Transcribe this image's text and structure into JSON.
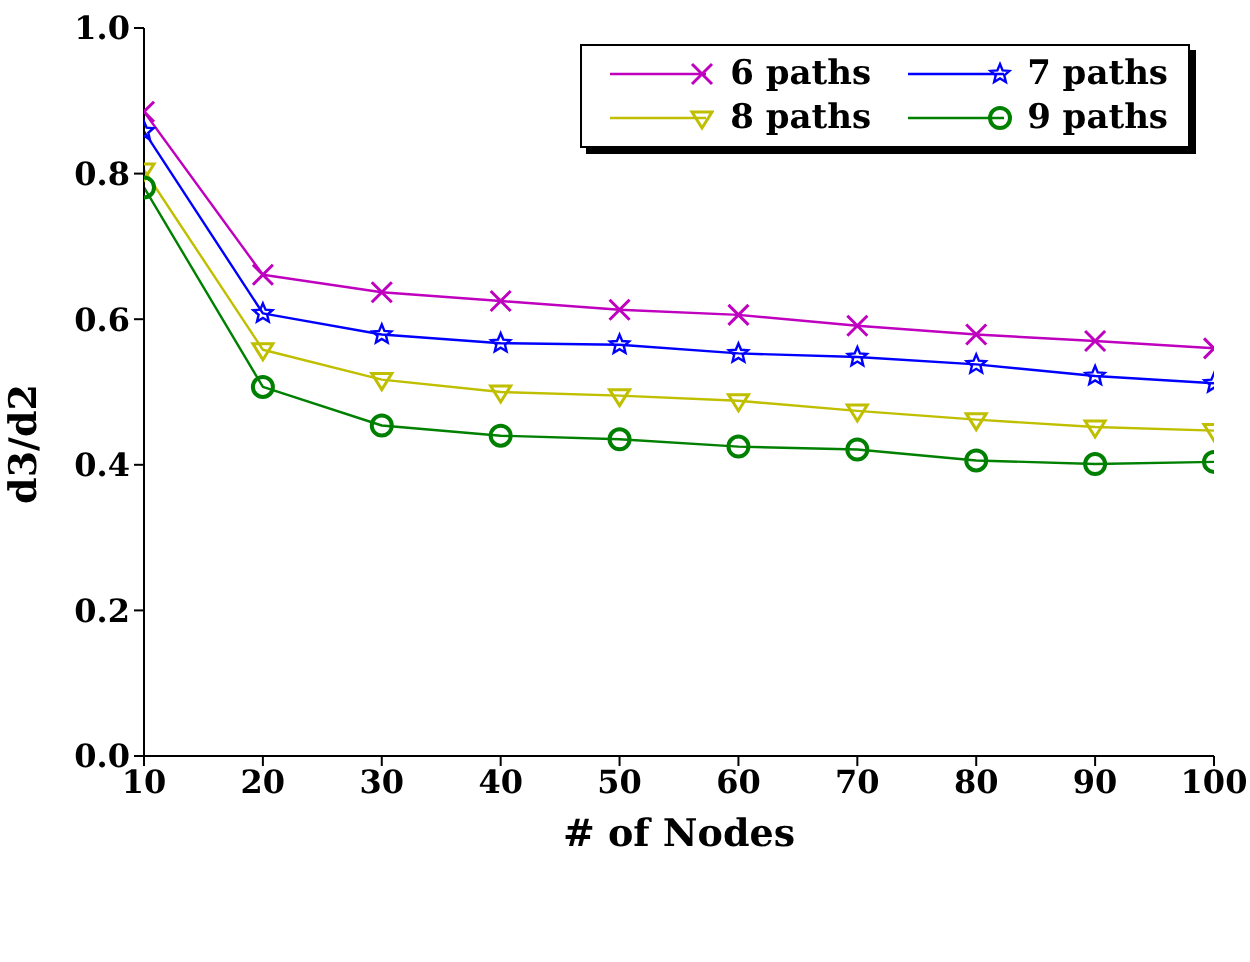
{
  "chart_data": {
    "type": "line",
    "xlabel": "# of Nodes",
    "ylabel": "d3/d2",
    "x": [
      10,
      20,
      30,
      40,
      50,
      60,
      70,
      80,
      90,
      100
    ],
    "xlim": [
      10,
      100
    ],
    "xticks": [
      10,
      20,
      30,
      40,
      50,
      60,
      70,
      80,
      90,
      100
    ],
    "ylim": [
      0,
      1
    ],
    "yticks": [
      {
        "value": 0,
        "label": "0.0"
      },
      0.2,
      0.4,
      0.6,
      0.8,
      {
        "value": 1,
        "label": "1.0"
      }
    ],
    "grid": false,
    "legend": "top right",
    "series": [
      {
        "name": "6 paths",
        "color": "#bf00bf",
        "marker": "cross",
        "values": [
          0.885,
          0.661,
          0.637,
          0.625,
          0.613,
          0.606,
          0.591,
          0.579,
          0.57,
          0.56
        ]
      },
      {
        "name": "7 paths",
        "color": "#0000ff",
        "marker": "star",
        "values": [
          0.858,
          0.608,
          0.579,
          0.567,
          0.565,
          0.553,
          0.548,
          0.538,
          0.522,
          0.512
        ]
      },
      {
        "name": "8 paths",
        "color": "#bfbf00",
        "marker": "triangle",
        "values": [
          0.805,
          0.558,
          0.517,
          0.5,
          0.495,
          0.488,
          0.474,
          0.462,
          0.452,
          0.447
        ]
      },
      {
        "name": "9 paths",
        "color": "#008000",
        "marker": "circle",
        "values": [
          0.781,
          0.507,
          0.454,
          0.44,
          0.435,
          0.425,
          0.421,
          0.406,
          0.401,
          0.404
        ]
      }
    ]
  }
}
